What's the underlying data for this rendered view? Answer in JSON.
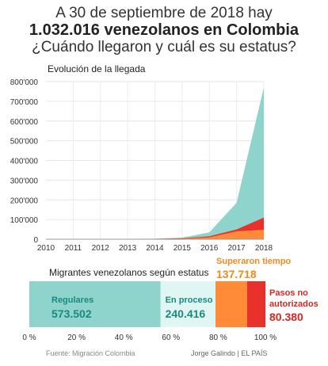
{
  "header": {
    "line1": "A 30 de septiembre de 2018 hay",
    "line2": "1.032.016 venezolanos en Colombia",
    "line3": "¿Cuándo llegaron y cuál es su estatus?"
  },
  "colors": {
    "regulares": "#8ed3cc",
    "en_proceso": "#dff6f3",
    "superaron": "#ff8a38",
    "no_autorizados": "#e8312a",
    "label_teal": "#1a8a80",
    "label_orange": "#ef8a1e",
    "label_red": "#d9261f"
  },
  "chart_data": [
    {
      "type": "area",
      "title": "Evolución de la llegada",
      "x": [
        2010,
        2011,
        2012,
        2013,
        2014,
        2015,
        2016,
        2017,
        2018
      ],
      "ylim": [
        0,
        800000
      ],
      "yticks": [
        "0",
        "100'000",
        "200'000",
        "300'000",
        "400'000",
        "500'000",
        "600'000",
        "700'000",
        "800'000"
      ],
      "series": [
        {
          "values": [
            2000,
            2000,
            2000,
            2000,
            3000,
            8000,
            35000,
            185000,
            770000
          ],
          "color": "#8ed3cc"
        },
        {
          "values": [
            1000,
            1000,
            1000,
            1000,
            2000,
            5000,
            15000,
            50000,
            110000
          ],
          "color": "#e8312a"
        },
        {
          "values": [
            500,
            500,
            500,
            500,
            1000,
            3000,
            10000,
            40000,
            48000
          ],
          "color": "#ff8a38"
        }
      ],
      "grid": true
    },
    {
      "type": "bar",
      "orientation": "horizontal-stacked",
      "title": "Migrantes venezolanos según estatus",
      "xticks": [
        "0 %",
        "20 %",
        "40 %",
        "60 %",
        "80 %",
        "100 %"
      ],
      "segments": [
        {
          "name": "Regulares",
          "label": "573.502",
          "value": 573502
        },
        {
          "name": "En proceso",
          "label": "240.416",
          "value": 240416
        },
        {
          "name": "Superaron tiempo",
          "label": "137.718",
          "value": 137718
        },
        {
          "name": "Pasos no autorizados",
          "name_line1": "Pasos no",
          "name_line2": "autorizados",
          "label": "80.380",
          "value": 80380
        }
      ]
    }
  ],
  "footer": {
    "source": "Fuente: Migración Colombia",
    "credit": "Jorge Galindo | EL PAÍS"
  }
}
